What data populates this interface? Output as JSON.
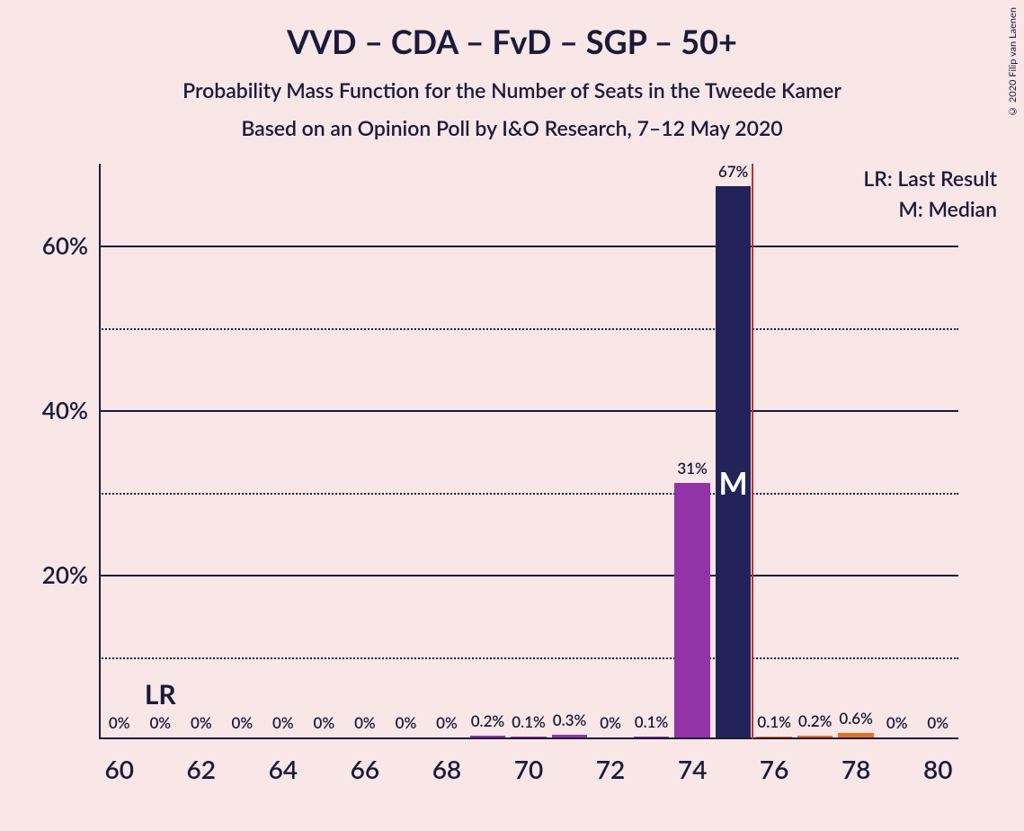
{
  "title": "VVD – CDA – FvD – SGP – 50+",
  "subtitle1": "Probability Mass Function for the Number of Seats in the Tweede Kamer",
  "subtitle2": "Based on an Opinion Poll by I&O Research, 7–12 May 2020",
  "copyright": "© 2020 Filip van Laenen",
  "legend": {
    "lr": "LR: Last Result",
    "m": "M: Median"
  },
  "chart": {
    "type": "bar",
    "background_color": "#f9e6e6",
    "axis_color": "#1a1a3a",
    "text_color": "#1a1a3a",
    "median_line_color": "#c92a2a",
    "ylim": [
      0,
      70
    ],
    "ytick_major": [
      20,
      40,
      60
    ],
    "ytick_minor": [
      10,
      30,
      50
    ],
    "ytick_format": "%",
    "x_range": [
      60,
      80
    ],
    "xtick_major": [
      60,
      62,
      64,
      66,
      68,
      70,
      72,
      74,
      76,
      78,
      80
    ],
    "last_result_seat": 61,
    "last_result_label": "LR",
    "median_seat": 75,
    "median_label": "M",
    "bars": [
      {
        "seat": 60,
        "value": 0,
        "label": "0%",
        "color": "#9333a8"
      },
      {
        "seat": 61,
        "value": 0,
        "label": "0%",
        "color": "#9333a8"
      },
      {
        "seat": 62,
        "value": 0,
        "label": "0%",
        "color": "#9333a8"
      },
      {
        "seat": 63,
        "value": 0,
        "label": "0%",
        "color": "#9333a8"
      },
      {
        "seat": 64,
        "value": 0,
        "label": "0%",
        "color": "#9333a8"
      },
      {
        "seat": 65,
        "value": 0,
        "label": "0%",
        "color": "#9333a8"
      },
      {
        "seat": 66,
        "value": 0,
        "label": "0%",
        "color": "#9333a8"
      },
      {
        "seat": 67,
        "value": 0,
        "label": "0%",
        "color": "#9333a8"
      },
      {
        "seat": 68,
        "value": 0,
        "label": "0%",
        "color": "#9333a8"
      },
      {
        "seat": 69,
        "value": 0.2,
        "label": "0.2%",
        "color": "#9333a8"
      },
      {
        "seat": 70,
        "value": 0.1,
        "label": "0.1%",
        "color": "#9333a8"
      },
      {
        "seat": 71,
        "value": 0.3,
        "label": "0.3%",
        "color": "#9333a8"
      },
      {
        "seat": 72,
        "value": 0,
        "label": "0%",
        "color": "#9333a8"
      },
      {
        "seat": 73,
        "value": 0.1,
        "label": "0.1%",
        "color": "#9333a8"
      },
      {
        "seat": 74,
        "value": 31,
        "label": "31%",
        "color": "#9333a8"
      },
      {
        "seat": 75,
        "value": 67,
        "label": "67%",
        "color": "#23235a"
      },
      {
        "seat": 76,
        "value": 0.1,
        "label": "0.1%",
        "color": "#e8701a"
      },
      {
        "seat": 77,
        "value": 0.2,
        "label": "0.2%",
        "color": "#e8701a"
      },
      {
        "seat": 78,
        "value": 0.6,
        "label": "0.6%",
        "color": "#e8701a"
      },
      {
        "seat": 79,
        "value": 0,
        "label": "0%",
        "color": "#e8701a"
      },
      {
        "seat": 80,
        "value": 0,
        "label": "0%",
        "color": "#e8701a"
      }
    ]
  }
}
